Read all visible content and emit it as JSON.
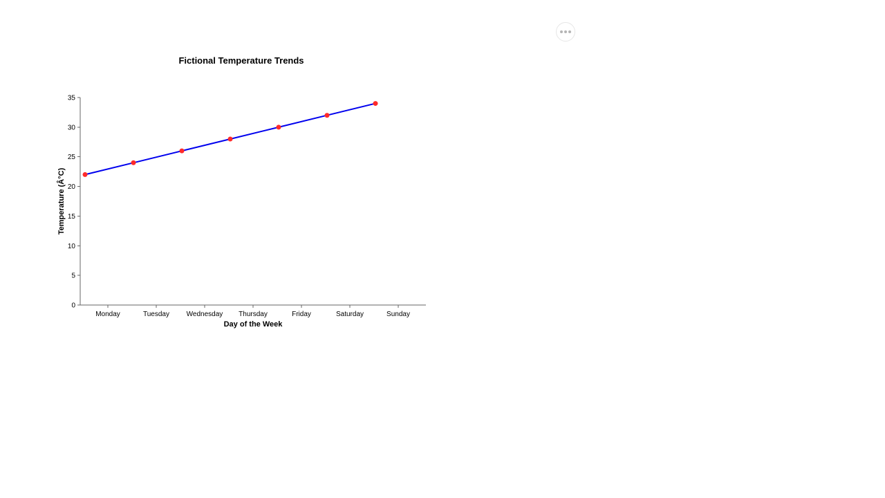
{
  "toolbar": {
    "more_icon": "more-horizontal-icon"
  },
  "chart_data": {
    "type": "line",
    "title": "Fictional Temperature Trends",
    "xlabel": "Day of the Week",
    "ylabel": "Temperature (Â°C)",
    "categories": [
      "Monday",
      "Tuesday",
      "Wednesday",
      "Thursday",
      "Friday",
      "Saturday",
      "Sunday"
    ],
    "x_ticks": [
      "Monday",
      "Tuesday",
      "Wednesday",
      "Thursday",
      "Friday",
      "Saturday",
      "Sunday"
    ],
    "y_ticks": [
      0,
      5,
      10,
      15,
      20,
      25,
      30,
      35
    ],
    "ylim": [
      0,
      35
    ],
    "grid": false,
    "legend": "none",
    "series": [
      {
        "values": [
          22,
          24,
          26,
          28,
          30,
          32,
          34
        ],
        "line_color": "#0000ee",
        "marker_color": "#ff2a2a"
      }
    ]
  }
}
